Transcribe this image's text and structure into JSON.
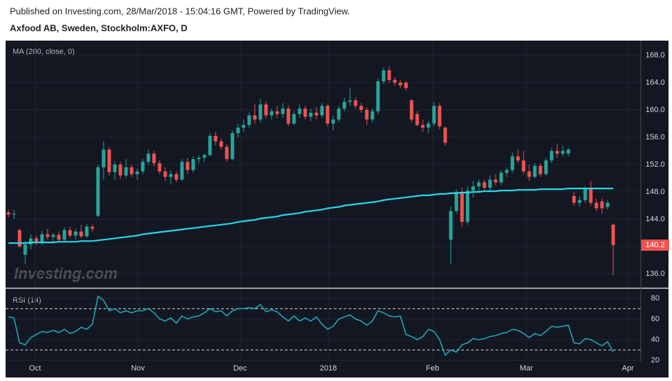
{
  "header": {
    "published": "Published on Investing.com, 28/Mar/2018 - 15:04:16 GMT, Powered by TradingView.",
    "symbol": "Axfood AB, Sweden, Stockholm:AXFO, D"
  },
  "watermark": "Investing.com",
  "chart_data": [
    {
      "type": "candlestick",
      "up_color": "#26a69a",
      "down_color": "#ef5350",
      "grid": true,
      "xlim": [
        -0.5,
        112.875
      ],
      "xticks": [
        {
          "value": 4.75,
          "label": "Oct"
        },
        {
          "value": 23.125,
          "label": "Nov"
        },
        {
          "value": 41.375,
          "label": "Dec"
        },
        {
          "value": 57.125,
          "label": "2018"
        },
        {
          "value": 75.75,
          "label": "Feb"
        },
        {
          "value": 92.5,
          "label": "Mar"
        },
        {
          "value": 110.625,
          "label": "Apr"
        }
      ],
      "ylim": [
        134.05,
        170.15
      ],
      "yticks": [
        {
          "value": 136,
          "label": "136.0"
        },
        {
          "value": 140,
          "label": "140.0"
        },
        {
          "value": 144,
          "label": "144.0"
        },
        {
          "value": 148,
          "label": "148.0"
        },
        {
          "value": 152,
          "label": "152.0"
        },
        {
          "value": 156,
          "label": "156.0"
        },
        {
          "value": 160,
          "label": "160.0"
        },
        {
          "value": 164,
          "label": "164.0"
        },
        {
          "value": 168,
          "label": "168.0"
        }
      ],
      "candles": [
        [
          145.0,
          145.4,
          144.3,
          144.7
        ],
        [
          144.7,
          145.4,
          144.0,
          144.8
        ],
        [
          142.4,
          142.6,
          139.8,
          140.0
        ],
        [
          138.8,
          140.8,
          137.5,
          140.3
        ],
        [
          140.3,
          141.8,
          139.6,
          141.2
        ],
        [
          141.2,
          141.6,
          140.2,
          140.6
        ],
        [
          140.6,
          142.3,
          140.2,
          141.8
        ],
        [
          141.8,
          142.6,
          141.0,
          141.4
        ],
        [
          141.4,
          142.0,
          140.6,
          141.7
        ],
        [
          141.7,
          142.2,
          140.8,
          141.0
        ],
        [
          141.0,
          142.8,
          140.7,
          142.4
        ],
        [
          142.4,
          142.9,
          141.2,
          141.6
        ],
        [
          141.6,
          142.6,
          141.0,
          142.2
        ],
        [
          142.2,
          143.2,
          141.2,
          141.5
        ],
        [
          141.5,
          143.3,
          141.3,
          142.9
        ],
        [
          142.9,
          143.2,
          142.2,
          142.6
        ],
        [
          144.5,
          152.0,
          144.3,
          151.6
        ],
        [
          151.6,
          155.4,
          149.8,
          154.2
        ],
        [
          154.2,
          154.6,
          150.4,
          150.9
        ],
        [
          150.9,
          152.5,
          149.8,
          152.0
        ],
        [
          152.0,
          152.4,
          149.9,
          150.4
        ],
        [
          150.4,
          152.8,
          150.0,
          151.6
        ],
        [
          151.6,
          152.0,
          150.2,
          150.6
        ],
        [
          150.6,
          151.4,
          149.8,
          151.0
        ],
        [
          151.0,
          152.8,
          150.6,
          152.4
        ],
        [
          152.4,
          154.2,
          152.0,
          153.6
        ],
        [
          153.6,
          154.0,
          151.8,
          152.2
        ],
        [
          152.2,
          152.6,
          150.6,
          151.0
        ],
        [
          151.0,
          151.6,
          149.6,
          150.2
        ],
        [
          150.2,
          151.2,
          149.2,
          150.6
        ],
        [
          150.6,
          151.0,
          149.4,
          149.8
        ],
        [
          149.8,
          152.8,
          149.6,
          152.4
        ],
        [
          152.4,
          153.0,
          150.6,
          151.2
        ],
        [
          151.2,
          153.2,
          150.8,
          152.8
        ],
        [
          152.8,
          153.4,
          152.2,
          153.0
        ],
        [
          153.0,
          153.6,
          152.4,
          153.4
        ],
        [
          153.4,
          156.6,
          153.2,
          156.2
        ],
        [
          156.2,
          156.8,
          154.8,
          155.4
        ],
        [
          155.4,
          155.8,
          154.2,
          154.6
        ],
        [
          154.6,
          155.0,
          152.4,
          152.8
        ],
        [
          152.8,
          157.0,
          152.6,
          156.6
        ],
        [
          156.6,
          158.0,
          156.0,
          157.4
        ],
        [
          157.4,
          158.6,
          156.8,
          157.8
        ],
        [
          157.8,
          159.6,
          157.4,
          159.2
        ],
        [
          159.2,
          160.8,
          158.0,
          158.6
        ],
        [
          158.6,
          161.6,
          158.2,
          160.8
        ],
        [
          160.8,
          161.2,
          158.8,
          159.2
        ],
        [
          159.2,
          160.2,
          158.6,
          159.8
        ],
        [
          159.8,
          160.6,
          158.8,
          159.4
        ],
        [
          159.4,
          161.0,
          158.8,
          160.2
        ],
        [
          160.2,
          160.6,
          157.6,
          158.0
        ],
        [
          158.0,
          159.8,
          157.8,
          159.4
        ],
        [
          159.4,
          160.8,
          158.8,
          160.2
        ],
        [
          160.2,
          160.6,
          158.6,
          159.0
        ],
        [
          159.0,
          160.2,
          158.4,
          159.6
        ],
        [
          159.6,
          160.4,
          158.6,
          159.2
        ],
        [
          159.2,
          161.0,
          158.8,
          160.6
        ],
        [
          160.6,
          160.8,
          157.6,
          158.0
        ],
        [
          158.0,
          159.2,
          157.0,
          158.6
        ],
        [
          158.6,
          160.6,
          158.2,
          160.2
        ],
        [
          160.2,
          161.8,
          159.8,
          161.2
        ],
        [
          161.2,
          163.2,
          160.6,
          161.4
        ],
        [
          161.4,
          161.8,
          160.2,
          160.6
        ],
        [
          160.6,
          161.0,
          159.6,
          160.0
        ],
        [
          160.0,
          160.4,
          157.8,
          158.6
        ],
        [
          158.6,
          160.2,
          158.2,
          159.8
        ],
        [
          159.8,
          164.6,
          159.4,
          164.2
        ],
        [
          164.2,
          166.2,
          163.8,
          165.8
        ],
        [
          165.8,
          166.4,
          164.0,
          164.4
        ],
        [
          164.4,
          164.8,
          163.6,
          164.0
        ],
        [
          164.0,
          164.4,
          163.2,
          163.6
        ],
        [
          164.0,
          164.2,
          162.8,
          163.2
        ],
        [
          161.4,
          161.6,
          158.2,
          158.6
        ],
        [
          159.4,
          159.8,
          157.6,
          157.8
        ],
        [
          157.8,
          158.6,
          156.8,
          157.4
        ],
        [
          157.4,
          158.4,
          156.6,
          158.0
        ],
        [
          158.0,
          161.2,
          157.6,
          160.6
        ],
        [
          160.6,
          161.0,
          157.2,
          157.6
        ],
        [
          157.4,
          157.6,
          154.8,
          155.2
        ],
        [
          141.0,
          145.8,
          137.4,
          145.2
        ],
        [
          145.2,
          148.4,
          144.8,
          148.0
        ],
        [
          148.0,
          148.6,
          142.8,
          143.6
        ],
        [
          143.6,
          148.8,
          143.2,
          148.2
        ],
        [
          148.2,
          149.6,
          147.2,
          148.8
        ],
        [
          148.8,
          149.8,
          148.0,
          149.4
        ],
        [
          149.4,
          149.8,
          148.2,
          148.6
        ],
        [
          148.6,
          150.4,
          148.2,
          149.8
        ],
        [
          149.8,
          150.6,
          149.0,
          149.4
        ],
        [
          149.4,
          151.2,
          149.0,
          150.8
        ],
        [
          150.8,
          151.6,
          150.2,
          151.2
        ],
        [
          151.2,
          153.8,
          150.8,
          153.2
        ],
        [
          153.2,
          154.2,
          152.2,
          152.6
        ],
        [
          152.6,
          154.0,
          150.6,
          151.0
        ],
        [
          151.0,
          152.0,
          149.6,
          150.2
        ],
        [
          150.2,
          152.2,
          150.0,
          151.8
        ],
        [
          151.8,
          152.2,
          150.2,
          150.6
        ],
        [
          150.6,
          153.0,
          150.4,
          152.6
        ],
        [
          152.6,
          154.4,
          152.2,
          154.0
        ],
        [
          154.0,
          155.0,
          153.0,
          153.6
        ],
        [
          153.6,
          154.8,
          153.2,
          154.0
        ],
        [
          153.6,
          154.4,
          153.2,
          154.2
        ],
        [
          147.4,
          148.0,
          146.0,
          146.4
        ],
        [
          146.4,
          147.4,
          145.8,
          146.8
        ],
        [
          146.8,
          148.8,
          146.4,
          148.4
        ],
        [
          148.4,
          149.6,
          146.0,
          146.4
        ],
        [
          146.4,
          147.0,
          145.2,
          145.6
        ],
        [
          146.6,
          147.0,
          144.8,
          145.6
        ],
        [
          145.8,
          146.8,
          145.4,
          146.4
        ],
        [
          143.2,
          143.4,
          135.8,
          140.2
        ]
      ],
      "series": [
        {
          "name": "MA (200, close, 0)",
          "color": "#26d7e8",
          "values": [
            140.5,
            140.5,
            140.5,
            140.5,
            140.6,
            140.6,
            140.6,
            140.6,
            140.6,
            140.7,
            140.7,
            140.7,
            140.7,
            140.8,
            140.8,
            140.8,
            140.9,
            141.0,
            141.1,
            141.2,
            141.3,
            141.4,
            141.5,
            141.6,
            141.8,
            141.9,
            142.0,
            142.1,
            142.2,
            142.3,
            142.4,
            142.5,
            142.6,
            142.7,
            142.8,
            142.9,
            143.0,
            143.1,
            143.2,
            143.3,
            143.4,
            143.6,
            143.7,
            143.8,
            143.9,
            144.1,
            144.2,
            144.3,
            144.4,
            144.6,
            144.7,
            144.8,
            144.9,
            145.1,
            145.2,
            145.3,
            145.4,
            145.6,
            145.7,
            145.8,
            146.0,
            146.1,
            146.2,
            146.3,
            146.4,
            146.5,
            146.6,
            146.8,
            146.9,
            147.0,
            147.1,
            147.2,
            147.3,
            147.4,
            147.5,
            147.5,
            147.6,
            147.7,
            147.7,
            147.8,
            147.8,
            147.9,
            147.9,
            148.0,
            148.0,
            148.1,
            148.1,
            148.1,
            148.2,
            148.2,
            148.2,
            148.3,
            148.3,
            148.3,
            148.3,
            148.4,
            148.4,
            148.4,
            148.4,
            148.4,
            148.5,
            148.5,
            148.5,
            148.5,
            148.5,
            148.5,
            148.5,
            148.5,
            148.5
          ]
        }
      ]
    },
    {
      "type": "line",
      "grid": true,
      "xlim": [
        -0.5,
        112.875
      ],
      "ylim": [
        18.98,
        88.81
      ],
      "yticks": [
        20,
        40,
        60,
        80
      ],
      "levels": [
        30,
        70
      ],
      "series": [
        {
          "name": "RSI (14)",
          "color": "#1fa5b5",
          "values": [
            62,
            61,
            37,
            35,
            42,
            45,
            48,
            47,
            49,
            47,
            50,
            46,
            48,
            52,
            50,
            55,
            82,
            78,
            68,
            70,
            66,
            68,
            66,
            68,
            68,
            70,
            66,
            60,
            58,
            61,
            56,
            63,
            60,
            62,
            63,
            66,
            70,
            67,
            68,
            63,
            68,
            70,
            70,
            71,
            70,
            74,
            67,
            69,
            67,
            62,
            58,
            63,
            58,
            61,
            58,
            62,
            55,
            50,
            53,
            60,
            62,
            64,
            60,
            58,
            54,
            58,
            68,
            66,
            63,
            62,
            63,
            45,
            43,
            40,
            43,
            50,
            48,
            40,
            25,
            30,
            28,
            35,
            37,
            41,
            40,
            41,
            43,
            44,
            46,
            47,
            50,
            49,
            46,
            42,
            46,
            44,
            48,
            53,
            52,
            53,
            54,
            37,
            36,
            41,
            40,
            37,
            34,
            38,
            28
          ]
        }
      ]
    }
  ]
}
